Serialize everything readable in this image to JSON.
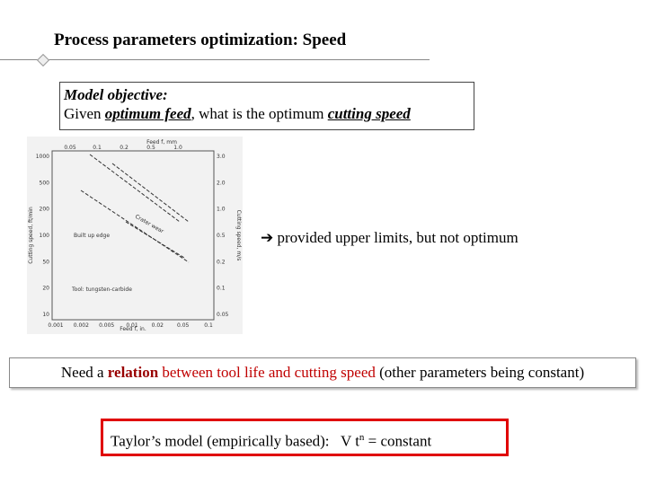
{
  "header": {
    "title": "Process parameters optimization: Speed"
  },
  "objective": {
    "label": "Model objective:",
    "segments": [
      "Given ",
      "optimum feed",
      ", what is the optimum ",
      "cutting speed"
    ]
  },
  "figure": {
    "top_title": "Feed f, mm",
    "bottom_title": "Feed f, in.",
    "left_title": "Cutting speed, ft/min",
    "right_title": "Cutting speed, m/s",
    "top_ticks": [
      "0.05",
      "0.1",
      "0.2",
      "0.5",
      "1.0"
    ],
    "bottom_ticks": [
      "0.001",
      "0.002",
      "0.005",
      "0.01",
      "0.02",
      "0.05",
      "0.1"
    ],
    "left_ticks": [
      "1000",
      "500",
      "200",
      "100",
      "50",
      "20",
      "10"
    ],
    "right_ticks": [
      "3.0",
      "2.0",
      "1.0",
      "0.5",
      "0.2",
      "0.1",
      "0.05"
    ],
    "curve_labels": [
      "Crater wear",
      "Built up edge"
    ],
    "notes": [
      "Tool: tungsten-carbide"
    ]
  },
  "remark": "provided upper limits, but not optimum",
  "need": {
    "segments": [
      "Need a ",
      "relation",
      " between tool life and cutting speed",
      " (other parameters being constant)"
    ]
  },
  "taylor": {
    "segments": [
      "Taylor’s model (empirically based):",
      "V t",
      "n",
      " =  constant"
    ]
  }
}
